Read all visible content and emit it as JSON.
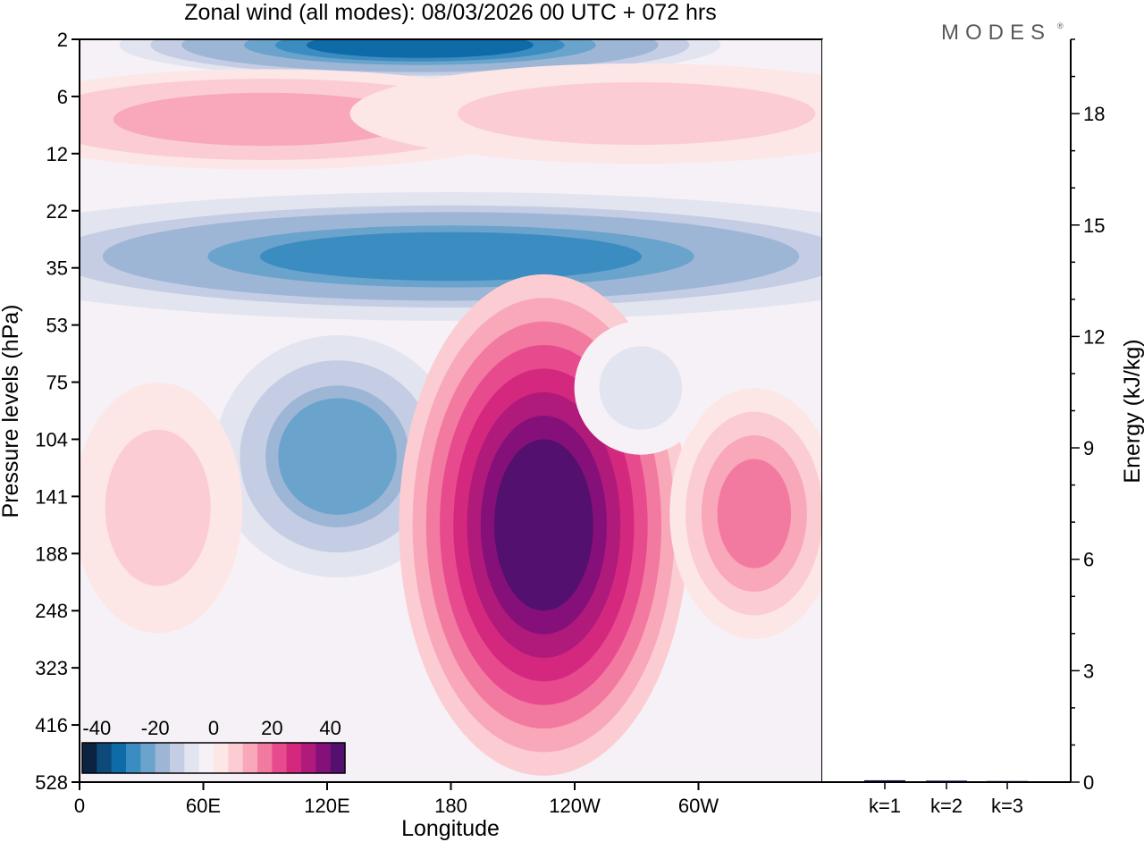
{
  "chart_data": {
    "type": "heatmap",
    "title": "Zonal wind (all modes):  08/03/2026  00 UTC  + 072 hrs",
    "brand": "MODES",
    "xlabel": "Longitude",
    "ylabel": "Pressure levels (hPa)",
    "x_ticks": [
      {
        "label": "0",
        "lon": 0
      },
      {
        "label": "60E",
        "lon": 60
      },
      {
        "label": "120E",
        "lon": 120
      },
      {
        "label": "180",
        "lon": 180
      },
      {
        "label": "120W",
        "lon": 240
      },
      {
        "label": "60W",
        "lon": 300
      }
    ],
    "x_range": [
      0,
      360
    ],
    "pressure_levels": [
      "2",
      "6",
      "12",
      "22",
      "35",
      "53",
      "75",
      "104",
      "141",
      "188",
      "248",
      "323",
      "416",
      "528"
    ],
    "colorbar": {
      "ticks": [
        "-40",
        "-20",
        "0",
        "20",
        "40"
      ],
      "range": [
        -45,
        45
      ],
      "colors": [
        "#0b2340",
        "#0d4a7a",
        "#0f6aa8",
        "#3b8cc0",
        "#6aa3cc",
        "#9db6d6",
        "#c4cde3",
        "#e2e5f0",
        "#f6f1f6",
        "#fde6e6",
        "#fbcdd2",
        "#f8a8b8",
        "#f27aa0",
        "#e84a8e",
        "#d4287f",
        "#b01a7a",
        "#86107a",
        "#54106e"
      ]
    },
    "zonal_wind_features": [
      {
        "name": "upper-stratosphere easterly core",
        "lon": 165,
        "level_index": 0.1,
        "value": -32
      },
      {
        "name": "westerly band",
        "lon": 90,
        "level_index": 1.4,
        "value": 14
      },
      {
        "name": "westerly band",
        "lon": 270,
        "level_index": 1.3,
        "value": 8
      },
      {
        "name": "easterly jet",
        "lon": 180,
        "level_index": 3.8,
        "value": -26
      },
      {
        "name": "easterly core",
        "lon": 125,
        "level_index": 7.3,
        "value": -24
      },
      {
        "name": "westerly jet maximum",
        "lon": 225,
        "level_index": 8.5,
        "value": 42
      },
      {
        "name": "westerly core",
        "lon": 327,
        "level_index": 8.3,
        "value": 18
      },
      {
        "name": "westerly core",
        "lon": 38,
        "level_index": 8.2,
        "value": 9
      },
      {
        "name": "easterly patch",
        "lon": 272,
        "level_index": 6.1,
        "value": -9
      }
    ],
    "energy_panel": {
      "ylabel": "Energy (kJ/kg)",
      "yticks": [
        "0",
        "3",
        "6",
        "9",
        "12",
        "15",
        "18"
      ],
      "ylim": [
        0,
        20
      ],
      "categories": [
        "k=1",
        "k=2",
        "k=3"
      ],
      "values": [
        0.05,
        0.04,
        0.03
      ]
    }
  }
}
